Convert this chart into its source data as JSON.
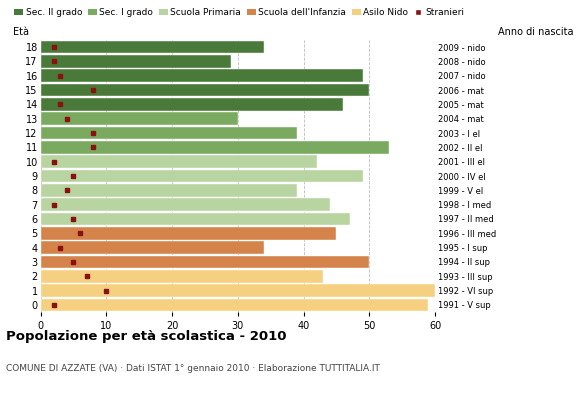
{
  "ages": [
    18,
    17,
    16,
    15,
    14,
    13,
    12,
    11,
    10,
    9,
    8,
    7,
    6,
    5,
    4,
    3,
    2,
    1,
    0
  ],
  "years": [
    "1991 - V sup",
    "1992 - VI sup",
    "1993 - III sup",
    "1994 - II sup",
    "1995 - I sup",
    "1996 - III med",
    "1997 - II med",
    "1998 - I med",
    "1999 - V el",
    "2000 - IV el",
    "2001 - III el",
    "2002 - II el",
    "2003 - I el",
    "2004 - mat",
    "2005 - mat",
    "2006 - mat",
    "2007 - nido",
    "2008 - nido",
    "2009 - nido"
  ],
  "bar_values": [
    34,
    29,
    49,
    50,
    46,
    30,
    39,
    53,
    42,
    49,
    39,
    44,
    47,
    45,
    34,
    50,
    43,
    60,
    59
  ],
  "stranieri": [
    2,
    2,
    3,
    8,
    3,
    4,
    8,
    8,
    2,
    5,
    4,
    2,
    5,
    6,
    3,
    5,
    7,
    10,
    2
  ],
  "colors": {
    "Sec. II grado": "#4a7a3a",
    "Sec. I grado": "#7aaa60",
    "Scuola Primaria": "#b8d4a0",
    "Scuola dell'Infanzia": "#d4844a",
    "Asilo Nido": "#f5d080",
    "Stranieri": "#8b1010"
  },
  "age_category": {
    "18": "Sec. II grado",
    "17": "Sec. II grado",
    "16": "Sec. II grado",
    "15": "Sec. II grado",
    "14": "Sec. II grado",
    "13": "Sec. I grado",
    "12": "Sec. I grado",
    "11": "Sec. I grado",
    "10": "Scuola Primaria",
    "9": "Scuola Primaria",
    "8": "Scuola Primaria",
    "7": "Scuola Primaria",
    "6": "Scuola Primaria",
    "5": "Scuola dell'Infanzia",
    "4": "Scuola dell'Infanzia",
    "3": "Scuola dell'Infanzia",
    "2": "Asilo Nido",
    "1": "Asilo Nido",
    "0": "Asilo Nido"
  },
  "title": "Popolazione per età scolastica - 2010",
  "subtitle": "COMUNE DI AZZATE (VA) · Dati ISTAT 1° gennaio 2010 · Elaborazione TUTTITALIA.IT",
  "xlim": [
    0,
    60
  ],
  "xlabel_eta": "Età",
  "xlabel_anno": "Anno di nascita",
  "background_color": "#ffffff",
  "grid_color": "#bbbbbb"
}
